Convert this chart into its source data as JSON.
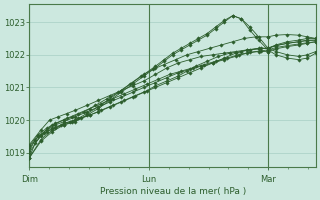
{
  "bg_color": "#cce8df",
  "grid_color": "#a8cfc5",
  "line_color": "#2d5e2d",
  "marker_color": "#2d5e2d",
  "axis_label_color": "#2d5e2d",
  "tick_color": "#2d5e2d",
  "border_color": "#4a7a4a",
  "xlabel": "Pression niveau de la mer( hPa )",
  "ylim": [
    1018.55,
    1023.55
  ],
  "yticks": [
    1019,
    1020,
    1021,
    1022,
    1023
  ],
  "day_labels": [
    "Dim",
    "Lun",
    "Mar"
  ],
  "day_positions": [
    0.0,
    0.417,
    0.833
  ],
  "xlim": [
    0.0,
    1.0
  ],
  "series": [
    [
      0.0,
      1018.85,
      0.02,
      1019.3,
      0.04,
      1019.5,
      0.06,
      1019.65,
      0.09,
      1019.75,
      0.12,
      1019.85,
      0.15,
      1019.95,
      0.18,
      1020.05,
      0.21,
      1020.15,
      0.24,
      1020.25,
      0.28,
      1020.4,
      0.32,
      1020.55,
      0.36,
      1020.7,
      0.4,
      1020.85,
      0.44,
      1021.0,
      0.48,
      1021.15,
      0.52,
      1021.3,
      0.56,
      1021.45,
      0.6,
      1021.6,
      0.64,
      1021.75,
      0.68,
      1021.9,
      0.72,
      1022.05,
      0.76,
      1022.15,
      0.8,
      1022.2,
      0.833,
      1022.2
    ],
    [
      0.0,
      1019.05,
      0.02,
      1019.4,
      0.05,
      1019.6,
      0.08,
      1019.75,
      0.11,
      1019.85,
      0.14,
      1019.95,
      0.17,
      1020.05,
      0.21,
      1020.15,
      0.25,
      1020.3,
      0.29,
      1020.45,
      0.33,
      1020.6,
      0.37,
      1020.75,
      0.41,
      1020.9,
      0.44,
      1021.05,
      0.48,
      1021.2,
      0.52,
      1021.35,
      0.55,
      1021.5,
      0.58,
      1021.65,
      0.62,
      1021.8,
      0.66,
      1021.95,
      0.7,
      1022.05,
      0.74,
      1022.1,
      0.77,
      1022.15,
      0.81,
      1022.2,
      0.833,
      1022.2
    ],
    [
      0.0,
      1019.15,
      0.03,
      1019.5,
      0.06,
      1019.7,
      0.09,
      1019.85,
      0.12,
      1019.95,
      0.16,
      1020.1,
      0.2,
      1020.25,
      0.24,
      1020.4,
      0.28,
      1020.55,
      0.32,
      1020.7,
      0.36,
      1020.85,
      0.4,
      1021.0,
      0.44,
      1021.15,
      0.48,
      1021.3,
      0.52,
      1021.45,
      0.56,
      1021.55,
      0.6,
      1021.65,
      0.64,
      1021.75,
      0.68,
      1021.85,
      0.72,
      1021.95,
      0.76,
      1022.05,
      0.8,
      1022.1,
      0.833,
      1022.1
    ],
    [
      0.0,
      1019.2,
      0.03,
      1019.55,
      0.06,
      1019.75,
      0.09,
      1019.9,
      0.13,
      1020.05,
      0.17,
      1020.2,
      0.21,
      1020.35,
      0.25,
      1020.5,
      0.29,
      1020.65,
      0.33,
      1020.8,
      0.37,
      1020.95,
      0.41,
      1021.1,
      0.45,
      1021.25,
      0.49,
      1021.4,
      0.53,
      1021.5,
      0.57,
      1021.6,
      0.61,
      1021.7,
      0.65,
      1021.8,
      0.69,
      1021.9,
      0.73,
      1022.0,
      0.77,
      1022.08,
      0.81,
      1022.12,
      0.833,
      1022.15
    ],
    [
      0.0,
      1019.25,
      0.04,
      1019.7,
      0.07,
      1020.0,
      0.1,
      1020.1,
      0.13,
      1020.2,
      0.16,
      1020.3,
      0.2,
      1020.45,
      0.24,
      1020.6,
      0.28,
      1020.75,
      0.32,
      1020.9,
      0.36,
      1021.05,
      0.4,
      1021.2,
      0.44,
      1021.4,
      0.48,
      1021.6,
      0.52,
      1021.75,
      0.56,
      1021.85,
      0.6,
      1021.95,
      0.64,
      1022.0,
      0.68,
      1022.05,
      0.72,
      1022.1,
      0.76,
      1022.15,
      0.8,
      1022.18,
      0.833,
      1022.2
    ],
    [
      0.0,
      1019.0,
      0.04,
      1019.55,
      0.08,
      1019.85,
      0.12,
      1020.0,
      0.15,
      1020.1,
      0.19,
      1020.25,
      0.23,
      1020.45,
      0.27,
      1020.65,
      0.31,
      1020.85,
      0.35,
      1021.1,
      0.39,
      1021.35,
      0.43,
      1021.55,
      0.47,
      1021.7,
      0.51,
      1021.85,
      0.55,
      1022.0,
      0.59,
      1022.1,
      0.63,
      1022.2,
      0.67,
      1022.3,
      0.71,
      1022.4,
      0.75,
      1022.5,
      0.79,
      1022.55,
      0.833,
      1022.55
    ],
    [
      0.0,
      1018.85,
      0.04,
      1019.4,
      0.08,
      1019.7,
      0.12,
      1019.9,
      0.16,
      1020.0,
      0.2,
      1020.2,
      0.24,
      1020.4,
      0.28,
      1020.65,
      0.32,
      1020.9,
      0.36,
      1021.15,
      0.4,
      1021.4,
      0.44,
      1021.65,
      0.47,
      1021.85,
      0.5,
      1022.05,
      0.53,
      1022.2,
      0.56,
      1022.35,
      0.59,
      1022.5,
      0.62,
      1022.65,
      0.65,
      1022.85,
      0.68,
      1023.05,
      0.71,
      1023.2,
      0.74,
      1023.1,
      0.77,
      1022.85,
      0.8,
      1022.55,
      0.833,
      1022.2
    ],
    [
      0.0,
      1018.85,
      0.04,
      1019.35,
      0.08,
      1019.65,
      0.12,
      1019.85,
      0.16,
      1019.95,
      0.2,
      1020.15,
      0.24,
      1020.35,
      0.28,
      1020.6,
      0.32,
      1020.85,
      0.36,
      1021.1,
      0.4,
      1021.35,
      0.44,
      1021.6,
      0.47,
      1021.8,
      0.5,
      1022.0,
      0.53,
      1022.15,
      0.56,
      1022.3,
      0.59,
      1022.45,
      0.62,
      1022.6,
      0.65,
      1022.8,
      0.68,
      1023.0,
      0.71,
      1023.2,
      0.74,
      1023.1,
      0.77,
      1022.75,
      0.8,
      1022.45,
      0.833,
      1022.15
    ]
  ],
  "series_right": [
    [
      0.833,
      1022.2,
      0.86,
      1022.3,
      0.9,
      1022.4,
      0.94,
      1022.45,
      0.97,
      1022.5,
      1.0,
      1022.5
    ],
    [
      0.833,
      1022.2,
      0.86,
      1022.28,
      0.9,
      1022.35,
      0.94,
      1022.4,
      0.97,
      1022.45,
      1.0,
      1022.45
    ],
    [
      0.833,
      1022.1,
      0.86,
      1022.18,
      0.9,
      1022.25,
      0.94,
      1022.3,
      0.97,
      1022.35,
      1.0,
      1022.4
    ],
    [
      0.833,
      1022.15,
      0.86,
      1022.22,
      0.9,
      1022.28,
      0.94,
      1022.33,
      0.97,
      1022.37,
      1.0,
      1022.4
    ],
    [
      0.833,
      1022.2,
      0.86,
      1022.28,
      0.9,
      1022.35,
      0.94,
      1022.4,
      0.97,
      1022.43,
      1.0,
      1022.45
    ],
    [
      0.833,
      1022.55,
      0.86,
      1022.6,
      0.9,
      1022.62,
      0.94,
      1022.6,
      0.97,
      1022.55,
      1.0,
      1022.5
    ],
    [
      0.833,
      1022.2,
      0.86,
      1022.1,
      0.9,
      1022.0,
      0.94,
      1021.95,
      0.97,
      1022.0,
      1.0,
      1022.1
    ],
    [
      0.833,
      1022.15,
      0.86,
      1022.0,
      0.9,
      1021.9,
      0.94,
      1021.85,
      0.97,
      1021.9,
      1.0,
      1022.05
    ]
  ]
}
